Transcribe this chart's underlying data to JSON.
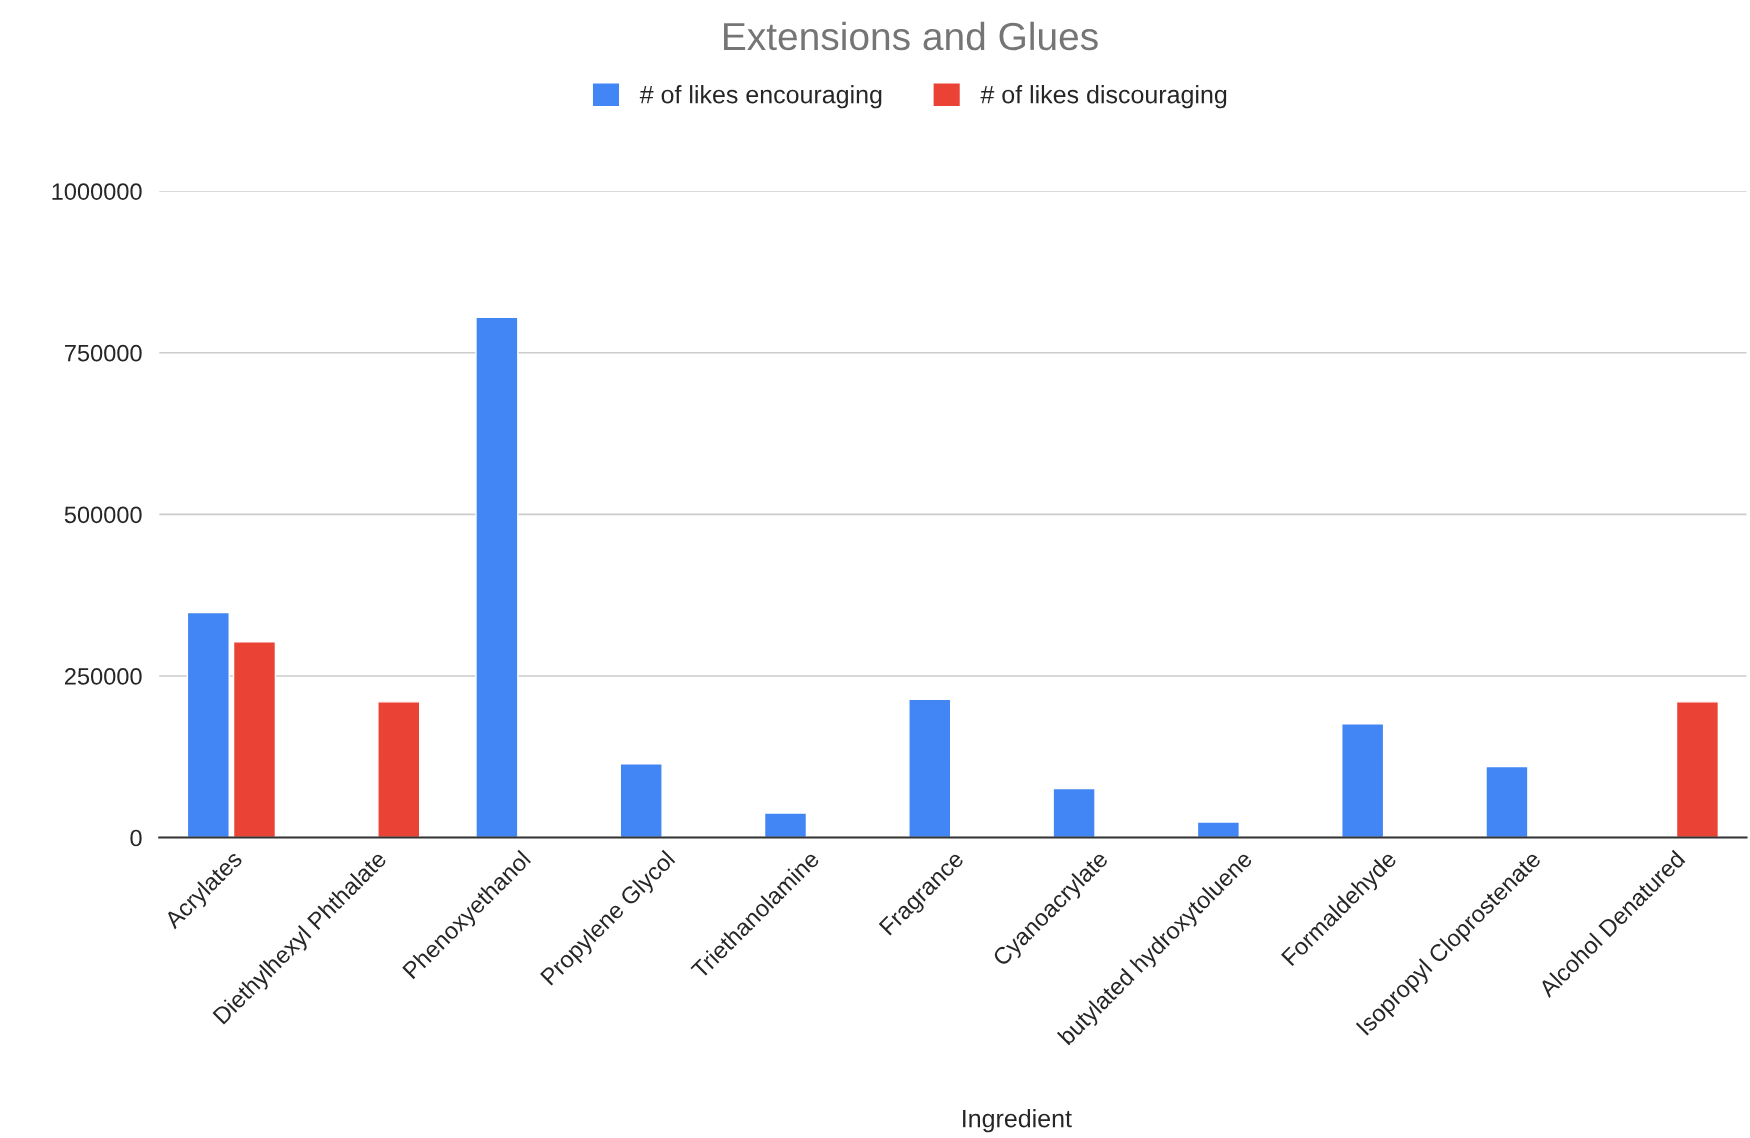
{
  "chart_data": {
    "type": "bar",
    "title": "Extensions and Glues",
    "xlabel": "Ingredient",
    "categories": [
      "Acrylates",
      "Diethylhexyl Phthalate",
      "Phenoxyethanol",
      "Propylene Glycol",
      "Triethanolamine",
      "Fragrance",
      "Cyanoacrylate",
      "butylated hydroxytoluene",
      "Formaldehyde",
      "Isopropyl Cloprostenate",
      "Alcohol Denatured"
    ],
    "series": [
      {
        "name": "# of likes encouraging",
        "color": "#4285f4",
        "values": [
          348000,
          null,
          805000,
          114000,
          38000,
          214000,
          76000,
          24000,
          176000,
          110000,
          null
        ]
      },
      {
        "name": "# of likes discouraging",
        "color": "#ea4335",
        "values": [
          303000,
          210000,
          null,
          null,
          null,
          null,
          null,
          null,
          null,
          null,
          210000
        ]
      }
    ],
    "ylim": [
      0,
      1000000
    ],
    "yticks": [
      0,
      250000,
      500000,
      750000,
      1000000
    ],
    "grid": "y",
    "legend": "top"
  }
}
